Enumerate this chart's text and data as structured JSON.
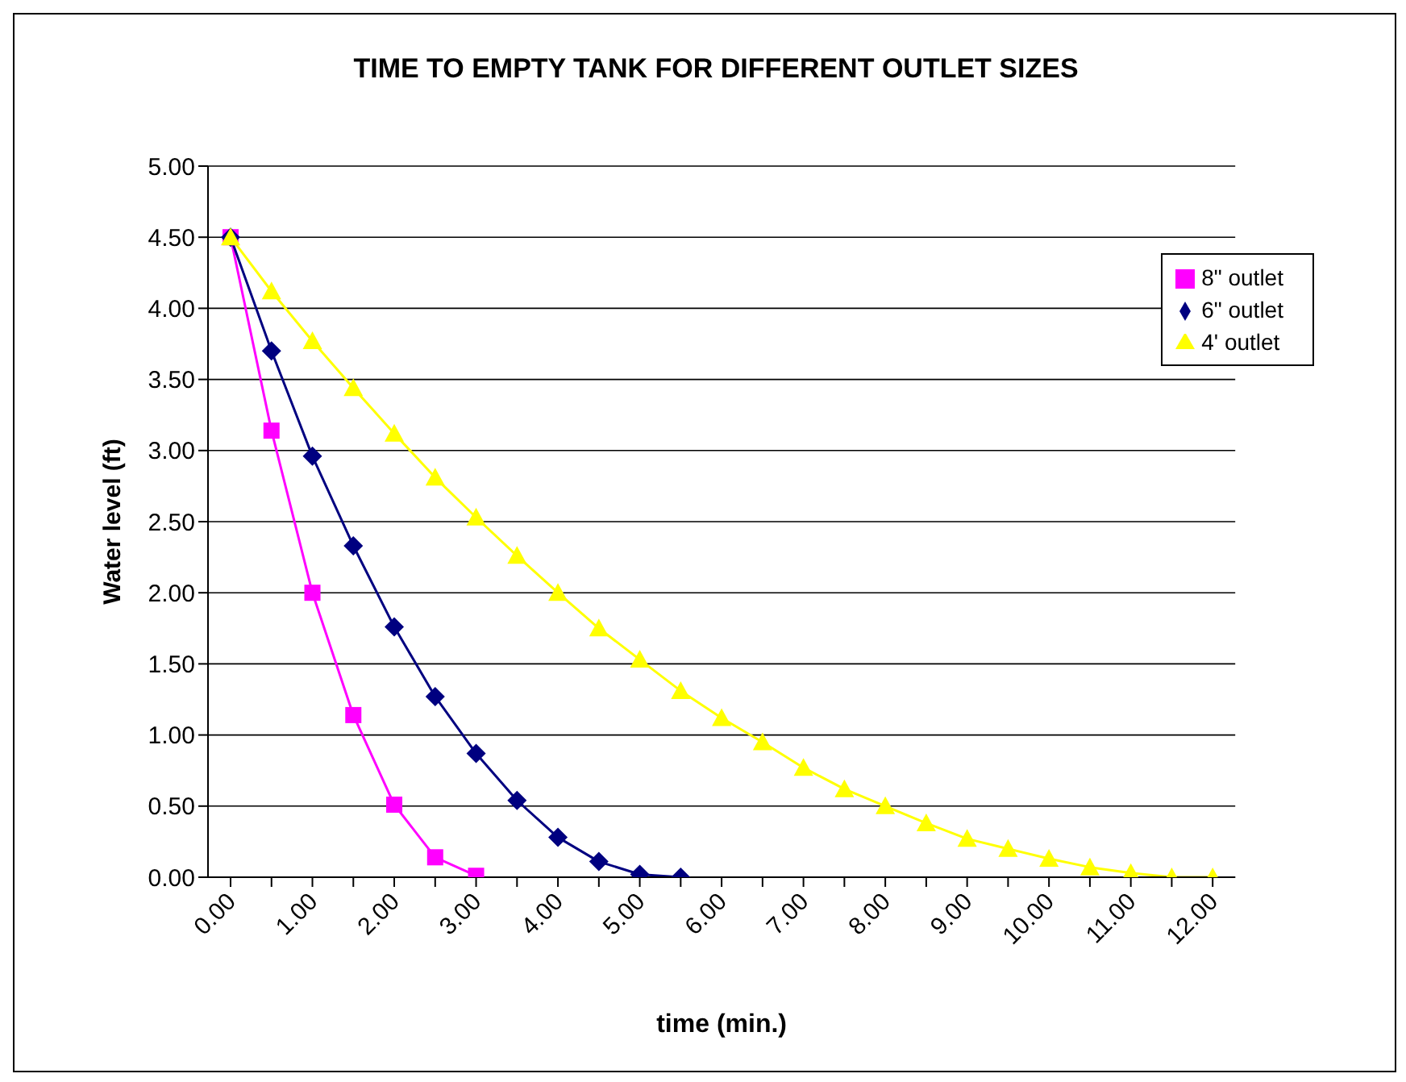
{
  "chart_data": {
    "type": "line",
    "title": "TIME TO EMPTY TANK FOR DIFFERENT OUTLET SIZES",
    "xlabel": "time (min.)",
    "ylabel": "Water level (ft)",
    "categories": [
      "0.00",
      null,
      "1.00",
      null,
      "2.00",
      null,
      "3.00",
      null,
      "4.00",
      null,
      "5.00",
      null,
      "6.00",
      null,
      "7.00",
      null,
      "8.00",
      null,
      "9.00",
      null,
      "10.00",
      null,
      "11.00",
      null,
      "12.00"
    ],
    "ylim": [
      0,
      5
    ],
    "yticks": [
      {
        "value": 0,
        "label": "0.00"
      },
      {
        "value": 0.5,
        "label": "0.50"
      },
      {
        "value": 1,
        "label": "1.00"
      },
      {
        "value": 1.5,
        "label": "1.50"
      },
      {
        "value": 2,
        "label": "2.00"
      },
      {
        "value": 2.5,
        "label": "2.50"
      },
      {
        "value": 3,
        "label": "3.00"
      },
      {
        "value": 3.5,
        "label": "3.50"
      },
      {
        "value": 4,
        "label": "4.00"
      },
      {
        "value": 4.5,
        "label": "4.50"
      },
      {
        "value": 5,
        "label": "5.00"
      }
    ],
    "grid": "y",
    "legend": "top right",
    "series": [
      {
        "name": "8\" outlet",
        "color": "#ff00ff",
        "marker": "square",
        "values": [
          4.5,
          3.14,
          2.0,
          1.14,
          0.51,
          0.14,
          0.01,
          null,
          null,
          null,
          null,
          null,
          null,
          null,
          null,
          null,
          null,
          null,
          null,
          null,
          null,
          null,
          null,
          null,
          null
        ]
      },
      {
        "name": "6\" outlet",
        "color": "#000080",
        "marker": "diamond",
        "values": [
          4.5,
          3.7,
          2.96,
          2.33,
          1.76,
          1.27,
          0.87,
          0.54,
          0.28,
          0.11,
          0.02,
          0.0,
          null,
          null,
          null,
          null,
          null,
          null,
          null,
          null,
          null,
          null,
          null,
          null,
          null
        ]
      },
      {
        "name": "4' outlet",
        "color": "#ffff00",
        "marker": "triangle",
        "values": [
          4.5,
          4.12,
          3.77,
          3.44,
          3.12,
          2.81,
          2.53,
          2.26,
          2.0,
          1.75,
          1.53,
          1.31,
          1.12,
          0.95,
          0.77,
          0.62,
          0.5,
          0.38,
          0.27,
          0.2,
          0.13,
          0.07,
          0.03,
          0.0,
          0.0
        ]
      }
    ]
  }
}
